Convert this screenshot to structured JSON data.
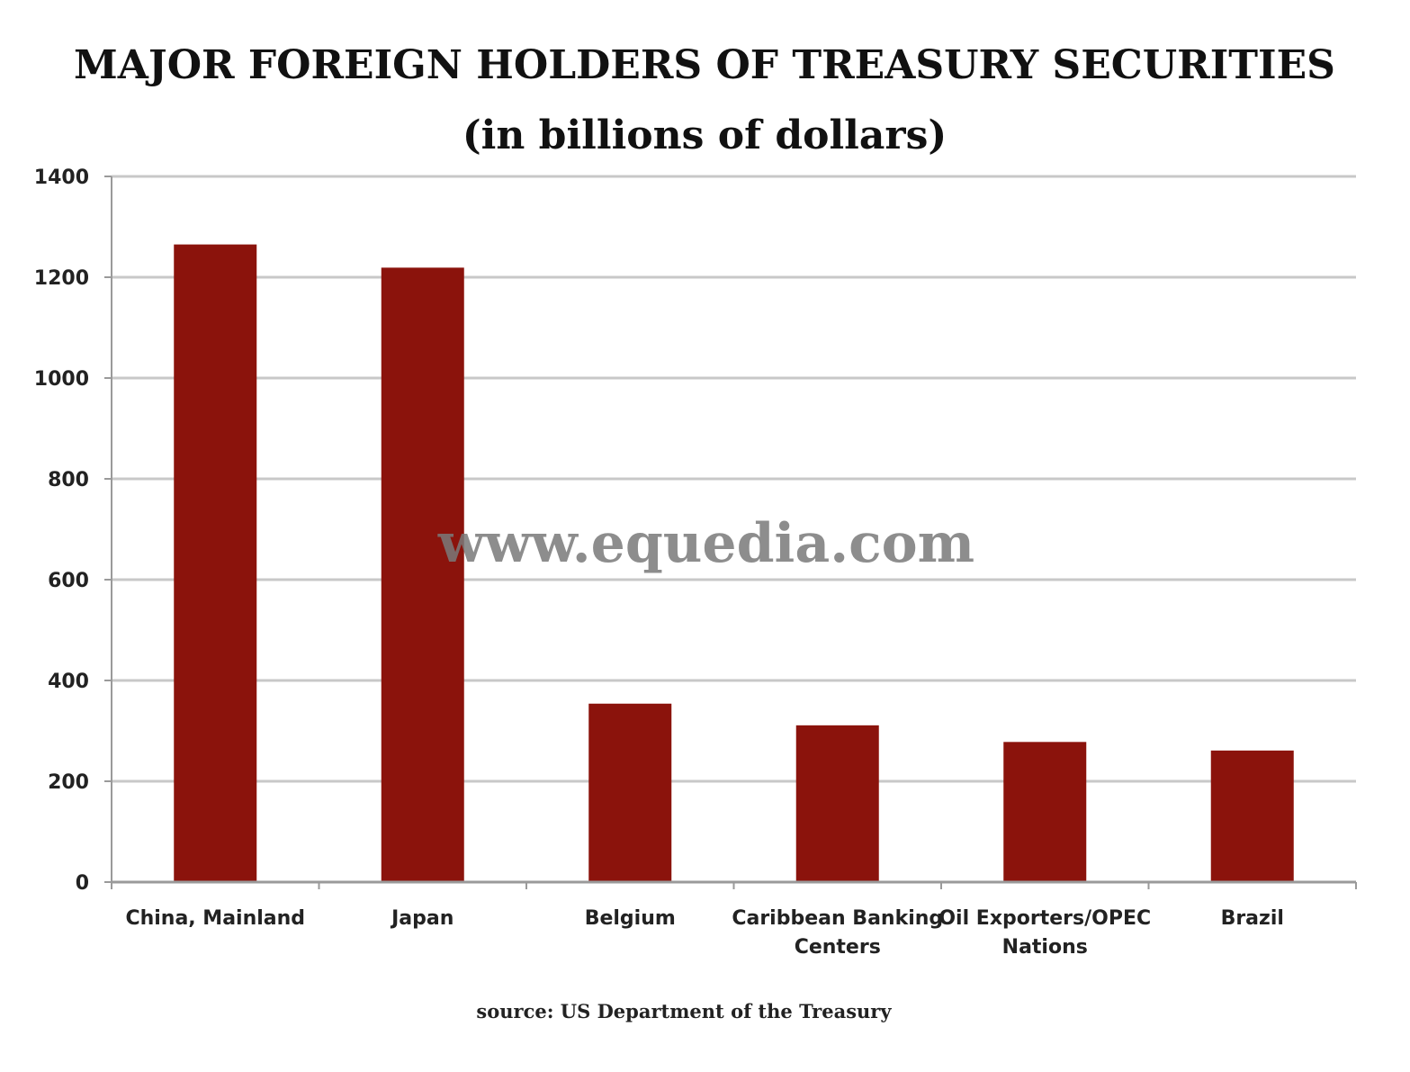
{
  "chart_data": {
    "type": "bar",
    "title": "MAJOR FOREIGN HOLDERS OF TREASURY SECURITIES",
    "subtitle": "(in billions of dollars)",
    "xlabel": "",
    "ylabel": "",
    "categories": [
      [
        "China, Mainland"
      ],
      [
        "Japan"
      ],
      [
        "Belgium"
      ],
      [
        "Caribbean Banking",
        "Centers"
      ],
      [
        "Oil Exporters/OPEC",
        "Nations"
      ],
      [
        "Brazil"
      ]
    ],
    "values": [
      1265,
      1219,
      354,
      311,
      278,
      261
    ],
    "ylim": [
      0,
      1400
    ],
    "yticks": [
      0,
      200,
      400,
      600,
      800,
      1000,
      1200,
      1400
    ],
    "grid": true,
    "bar_color": "#8b130c",
    "grid_color": "#c8c8c8",
    "source": "source: US Department of the Treasury",
    "watermark": "www.equedia.com"
  }
}
